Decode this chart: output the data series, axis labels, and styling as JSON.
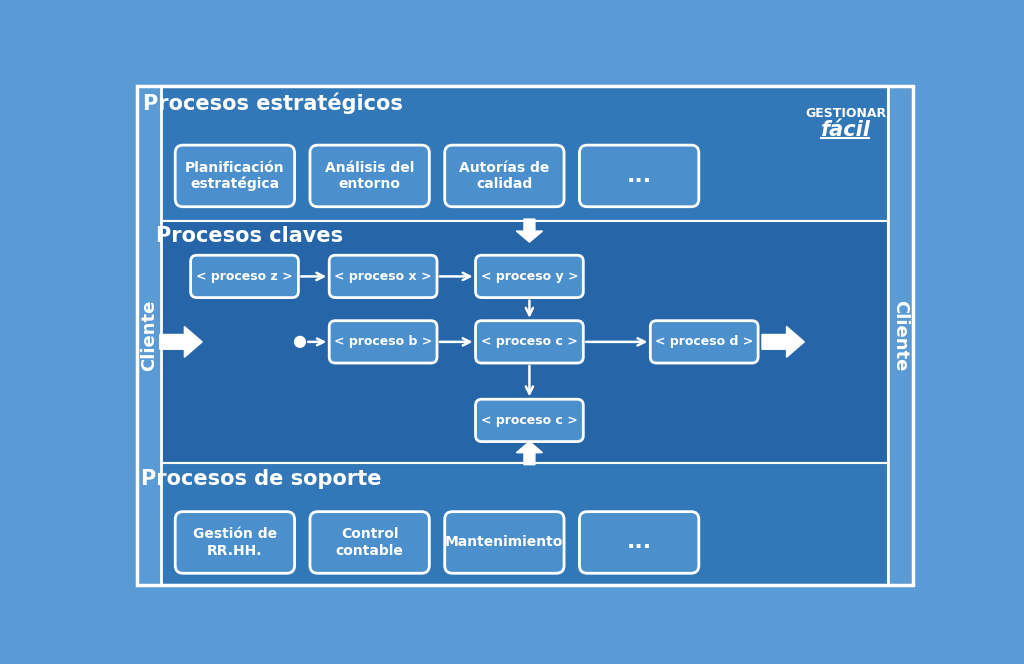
{
  "bg_outer": "#5B9BD5",
  "bg_strategic": "#3A7FBF",
  "bg_claves": "#2A6AAD",
  "bg_soporte": "#3A7FBF",
  "box_fill": "#4B8FCC",
  "box_border": "#FFFFFF",
  "text_white": "#FFFFFF",
  "title_strategic": "Procesos estratégicos",
  "title_claves": "Procesos claves",
  "title_soporte": "Procesos de soporte",
  "strategic_boxes": [
    "Planificación\nestraté́gica",
    "Análisis del\nentorno",
    "Autorías de\ncalidad",
    "..."
  ],
  "soporte_boxes": [
    "Gestión de\nRR.HH.",
    "Control\ncontable",
    "Mantenimiento",
    "..."
  ],
  "claves_row1": [
    "< proceso z >",
    "< proceso x >",
    "< proceso y >"
  ],
  "claves_row2": [
    "< proceso b >",
    "< proceso c >",
    "< proceso d >"
  ],
  "claves_row3": "< proceso c >",
  "cliente_text": "Cliente",
  "logo_line1": "GESTIONAR",
  "logo_line2": "fácil"
}
